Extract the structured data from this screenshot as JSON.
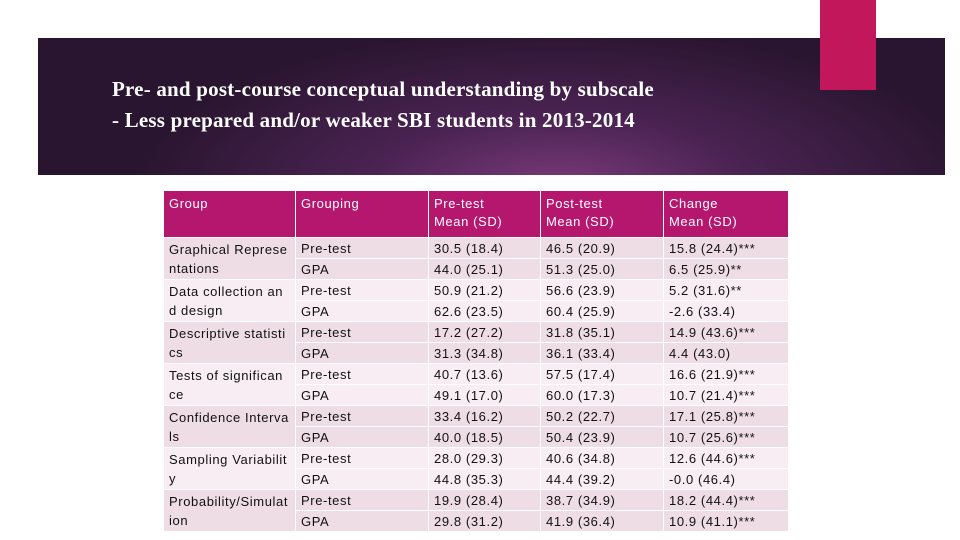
{
  "slide": {
    "title_lines": [
      "Pre- and post-course conceptual understanding by subscale",
      "- Less prepared and/or weaker SBI students in 2013-2014"
    ],
    "table": {
      "header": [
        [
          "Group"
        ],
        [
          "Grouping"
        ],
        [
          "Pre-test",
          "Mean (SD)"
        ],
        [
          "Post-test",
          "Mean (SD)"
        ],
        [
          "Change",
          "Mean (SD)"
        ]
      ],
      "groups": [
        {
          "label": "Graphical Representations",
          "rows": [
            [
              "Pre-test",
              "30.5 (18.4)",
              "46.5 (20.9)",
              "15.8 (24.4)***"
            ],
            [
              "GPA",
              "44.0 (25.1)",
              "51.3 (25.0)",
              "6.5 (25.9)**"
            ]
          ]
        },
        {
          "label": "Data collection and design",
          "rows": [
            [
              "Pre-test",
              "50.9 (21.2)",
              "56.6 (23.9)",
              "5.2 (31.6)**"
            ],
            [
              "GPA",
              "62.6 (23.5)",
              "60.4 (25.9)",
              "-2.6 (33.4)"
            ]
          ]
        },
        {
          "label": "Descriptive statistics",
          "rows": [
            [
              "Pre-test",
              "17.2 (27.2)",
              "31.8 (35.1)",
              "14.9 (43.6)***"
            ],
            [
              "GPA",
              "31.3 (34.8)",
              "36.1 (33.4)",
              "4.4 (43.0)"
            ]
          ]
        },
        {
          "label": "Tests of significance",
          "rows": [
            [
              "Pre-test",
              "40.7 (13.6)",
              "57.5 (17.4)",
              "16.6 (21.9)***"
            ],
            [
              "GPA",
              "49.1 (17.0)",
              "60.0 (17.3)",
              "10.7 (21.4)***"
            ]
          ]
        },
        {
          "label": "Confidence Intervals",
          "rows": [
            [
              "Pre-test",
              "33.4 (16.2)",
              "50.2 (22.7)",
              "17.1 (25.8)***"
            ],
            [
              "GPA",
              "40.0 (18.5)",
              "50.4 (23.9)",
              "10.7 (25.6)***"
            ]
          ]
        },
        {
          "label": "Sampling Variability",
          "rows": [
            [
              "Pre-test",
              "28.0 (29.3)",
              "40.6 (34.8)",
              "12.6 (44.6)***"
            ],
            [
              "GPA",
              "44.8 (35.3)",
              "44.4 (39.2)",
              "-0.0 (46.4)"
            ]
          ]
        },
        {
          "label": "Probability/Simulation",
          "rows": [
            [
              "Pre-test",
              "19.9 (28.4)",
              "38.7 (34.9)",
              "18.2 (44.4)***"
            ],
            [
              "GPA",
              "29.8 (31.2)",
              "41.9 (36.4)",
              "10.9 (41.1)***"
            ]
          ]
        }
      ]
    }
  }
}
